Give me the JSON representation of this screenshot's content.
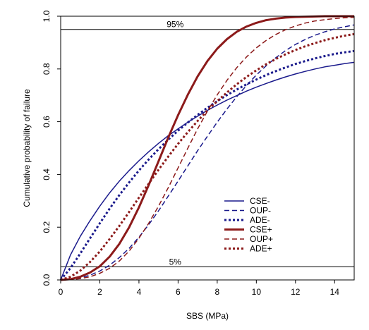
{
  "chart_data": {
    "type": "line",
    "title": "",
    "xlabel": "SBS (MPa)",
    "ylabel": "Cumulative probability of failure",
    "xlim": [
      0,
      15
    ],
    "ylim": [
      0,
      1
    ],
    "x_ticks": [
      "0",
      "2",
      "4",
      "6",
      "8",
      "10",
      "12",
      "14"
    ],
    "y_ticks": [
      "0.0",
      "0.2",
      "0.4",
      "0.6",
      "0.8",
      "1.0"
    ],
    "grid": false,
    "legend_position": "lower-right",
    "reference_lines": [
      {
        "label": "95%",
        "y": 0.95
      },
      {
        "label": "5%",
        "y": 0.05
      }
    ],
    "x": [
      0,
      0.5,
      1,
      1.5,
      2,
      2.5,
      3,
      3.5,
      4,
      4.5,
      5,
      5.5,
      6,
      6.5,
      7,
      7.5,
      8,
      8.5,
      9,
      9.5,
      10,
      10.5,
      11,
      11.5,
      12,
      12.5,
      13,
      13.5,
      14,
      14.5,
      15
    ],
    "series": [
      {
        "name": "CSE-",
        "color": "#1a1a8c",
        "style": "solid",
        "width": 1.5,
        "values": [
          0,
          0.095,
          0.165,
          0.225,
          0.28,
          0.33,
          0.375,
          0.415,
          0.452,
          0.486,
          0.518,
          0.547,
          0.573,
          0.598,
          0.621,
          0.643,
          0.663,
          0.682,
          0.699,
          0.716,
          0.731,
          0.745,
          0.758,
          0.77,
          0.781,
          0.791,
          0.8,
          0.808,
          0.814,
          0.82,
          0.825
        ]
      },
      {
        "name": "OUP-",
        "color": "#1a1a8c",
        "style": "dashed",
        "width": 1.5,
        "values": [
          0,
          0.002,
          0.008,
          0.018,
          0.034,
          0.056,
          0.085,
          0.12,
          0.162,
          0.21,
          0.262,
          0.318,
          0.375,
          0.433,
          0.49,
          0.545,
          0.598,
          0.648,
          0.695,
          0.738,
          0.777,
          0.812,
          0.843,
          0.87,
          0.893,
          0.912,
          0.928,
          0.941,
          0.952,
          0.96,
          0.967
        ]
      },
      {
        "name": "ADE-",
        "color": "#1a1a8c",
        "style": "dotted",
        "width": 3,
        "values": [
          0,
          0.045,
          0.1,
          0.158,
          0.215,
          0.27,
          0.322,
          0.37,
          0.415,
          0.457,
          0.496,
          0.532,
          0.566,
          0.597,
          0.626,
          0.653,
          0.678,
          0.701,
          0.722,
          0.742,
          0.76,
          0.777,
          0.792,
          0.806,
          0.819,
          0.83,
          0.84,
          0.849,
          0.857,
          0.863,
          0.868
        ]
      },
      {
        "name": "CSE+",
        "color": "#8c1a1a",
        "style": "solid",
        "width": 3,
        "values": [
          0,
          0.003,
          0.012,
          0.028,
          0.052,
          0.088,
          0.137,
          0.2,
          0.275,
          0.36,
          0.45,
          0.54,
          0.625,
          0.703,
          0.772,
          0.83,
          0.877,
          0.913,
          0.941,
          0.961,
          0.975,
          0.985,
          0.991,
          0.995,
          0.997,
          0.998,
          0.999,
          1.0,
          1.0,
          1.0,
          1.0
        ]
      },
      {
        "name": "OUP+",
        "color": "#8c1a1a",
        "style": "dashed",
        "width": 1.5,
        "values": [
          0,
          0.001,
          0.005,
          0.012,
          0.025,
          0.044,
          0.072,
          0.11,
          0.158,
          0.215,
          0.28,
          0.35,
          0.425,
          0.5,
          0.573,
          0.64,
          0.702,
          0.757,
          0.805,
          0.846,
          0.88,
          0.908,
          0.931,
          0.949,
          0.963,
          0.974,
          0.982,
          0.987,
          0.991,
          0.994,
          0.996
        ]
      },
      {
        "name": "ADE+",
        "color": "#8c1a1a",
        "style": "dotted",
        "width": 3,
        "values": [
          0,
          0.012,
          0.035,
          0.068,
          0.108,
          0.155,
          0.205,
          0.258,
          0.312,
          0.365,
          0.418,
          0.468,
          0.516,
          0.561,
          0.603,
          0.642,
          0.678,
          0.711,
          0.742,
          0.77,
          0.795,
          0.818,
          0.838,
          0.856,
          0.872,
          0.886,
          0.898,
          0.909,
          0.918,
          0.926,
          0.932
        ]
      }
    ]
  }
}
